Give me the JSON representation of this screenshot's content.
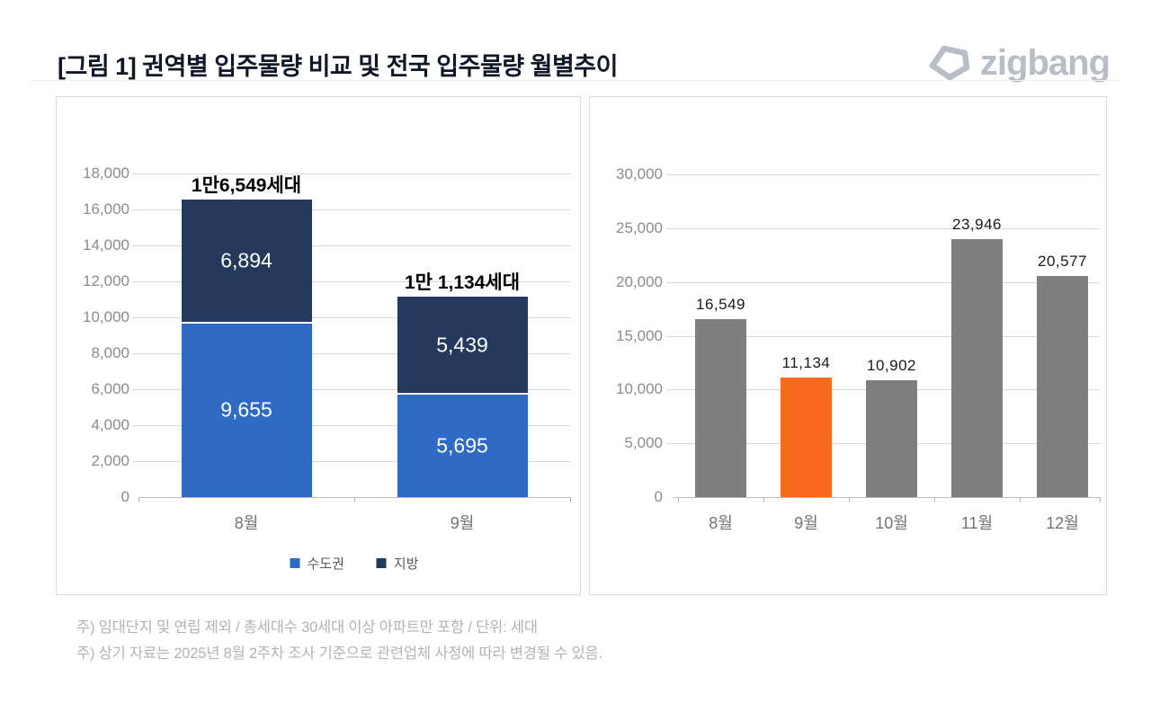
{
  "page": {
    "title": "[그림 1] 권역별 입주물량 비교 및 전국 입주물량 월별추이",
    "logo_text": "zigbang",
    "notes": [
      "주) 임대단지 및 연립 제외 / 총세대수 30세대 이상 아파트만 포함 / 단위: 세대",
      "주) 상기 자료는 2025년 8월 2주차 조사 기준으로 관련업체 사정에 따라 변경될 수 있음."
    ]
  },
  "colors": {
    "capital_blue": "#2F6BC4",
    "regional_navy": "#24395B",
    "highlight_orange": "#F96A1E",
    "bar_gray": "#7F7F7F",
    "grid": "#D9D9D9",
    "axis": "#B9B9B9",
    "tick_label": "#8C8C8C",
    "logo_gray": "#B9BDC6"
  },
  "chart_data": [
    {
      "type": "bar",
      "subtype": "stacked",
      "categories": [
        "8월",
        "9월"
      ],
      "series": [
        {
          "name": "수도권",
          "color_key": "capital_blue",
          "values": [
            9655,
            5695
          ]
        },
        {
          "name": "지방",
          "color_key": "regional_navy",
          "values": [
            6894,
            5439
          ]
        }
      ],
      "totals": [
        16549,
        11134
      ],
      "total_labels": [
        "1만6,549세대",
        "1만 1,134세대"
      ],
      "ylim": [
        0,
        18000
      ],
      "ytick_step": 2000,
      "grid": true,
      "legend_position": "bottom"
    },
    {
      "type": "bar",
      "categories": [
        "8월",
        "9월",
        "10월",
        "11월",
        "12월"
      ],
      "values": [
        16549,
        11134,
        10902,
        23946,
        20577
      ],
      "bar_color_keys": [
        "bar_gray",
        "highlight_orange",
        "bar_gray",
        "bar_gray",
        "bar_gray"
      ],
      "data_labels": [
        "16,549",
        "11,134",
        "10,902",
        "23,946",
        "20,577"
      ],
      "ylim": [
        0,
        30000
      ],
      "ytick_step": 5000,
      "grid": true,
      "legend_position": "none"
    }
  ]
}
